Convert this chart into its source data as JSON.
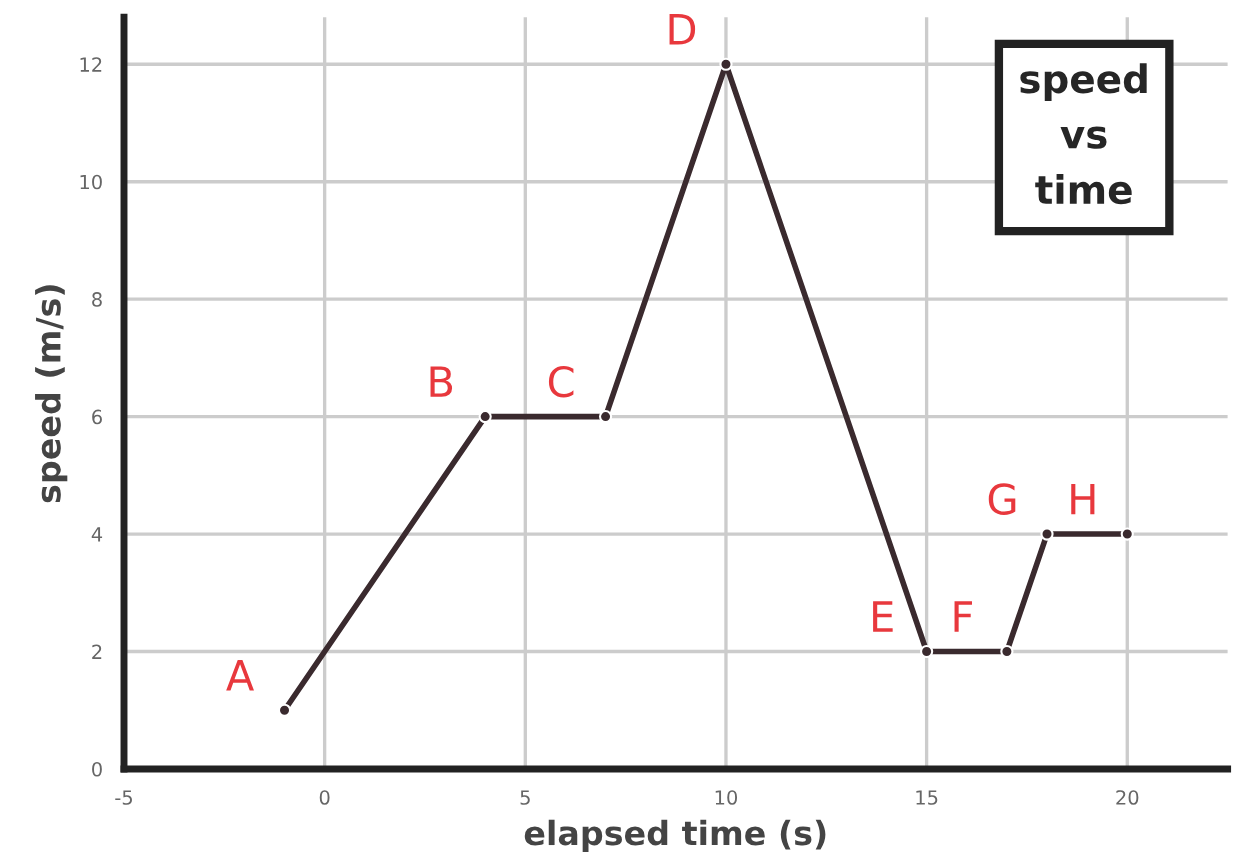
{
  "chart_data": {
    "type": "line",
    "title": "speed\nvs\ntime",
    "xlabel": "elapsed time (s)",
    "ylabel": "speed (m/s)",
    "x": [
      -1,
      4,
      7,
      10,
      15,
      17,
      18,
      20
    ],
    "series": [
      {
        "color": "#3a2a2e",
        "values": [
          1,
          6,
          6,
          12,
          2,
          2,
          4,
          4
        ]
      }
    ],
    "xlim": [
      -5,
      22.5
    ],
    "ylim": [
      0,
      12.8
    ],
    "xticks": [
      -5,
      0,
      5,
      10,
      15,
      20
    ],
    "yticks": [
      0,
      2,
      4,
      6,
      8,
      10,
      12
    ],
    "grid": true,
    "marker": "circle",
    "line_style": "solid",
    "annotations": [
      {
        "text": "A",
        "x": -1,
        "y": 1
      },
      {
        "text": "B",
        "x": 4,
        "y": 6
      },
      {
        "text": "C",
        "x": 7,
        "y": 6
      },
      {
        "text": "D",
        "x": 10,
        "y": 12
      },
      {
        "text": "E",
        "x": 15,
        "y": 2
      },
      {
        "text": "F",
        "x": 17,
        "y": 2
      },
      {
        "text": "G",
        "x": 18,
        "y": 4
      },
      {
        "text": "H",
        "x": 20,
        "y": 4
      }
    ]
  }
}
